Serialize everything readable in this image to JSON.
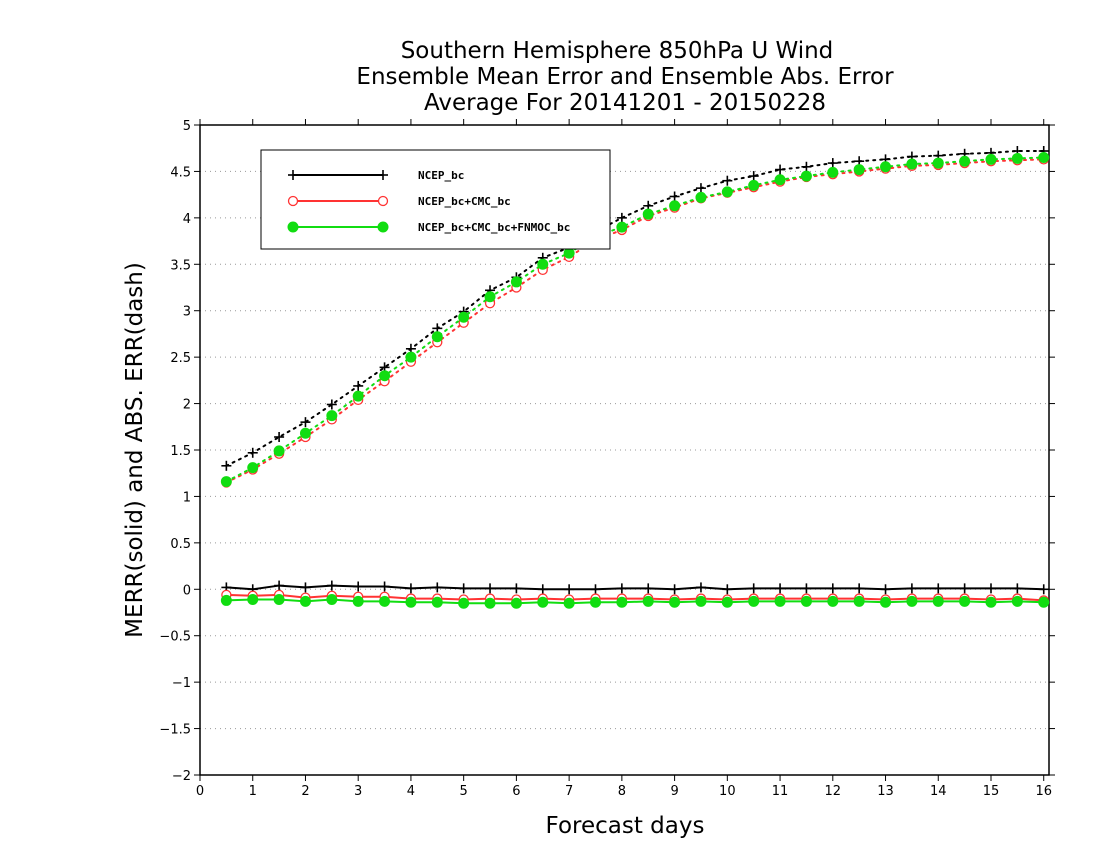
{
  "chart_data": {
    "type": "line",
    "title_lines": [
      "Southern Hemisphere 850hPa U Wind",
      "Ensemble Mean Error and Ensemble Abs. Error",
      "Average For 20141201 - 20150228"
    ],
    "xlabel": "Forecast days",
    "ylabel": "MERR(solid) and ABS. ERR(dash)",
    "xlim": [
      0,
      16.1
    ],
    "ylim": [
      -2,
      5
    ],
    "x_ticks": [
      0,
      1,
      2,
      3,
      4,
      5,
      6,
      7,
      8,
      9,
      10,
      11,
      12,
      13,
      14,
      15,
      16
    ],
    "y_ticks": [
      -2,
      -1.5,
      -1,
      -0.5,
      0,
      0.5,
      1,
      1.5,
      2,
      2.5,
      3,
      3.5,
      4,
      4.5,
      5
    ],
    "y_tick_labels": [
      "−2",
      "−1.5",
      "−1",
      "−0.5",
      "0",
      "0.5",
      "1",
      "1.5",
      "2",
      "2.5",
      "3",
      "3.5",
      "4",
      "4.5",
      "5"
    ],
    "grid": "horizontal dotted",
    "legend_position": "top-left",
    "x": [
      0.5,
      1,
      1.5,
      2,
      2.5,
      3,
      3.5,
      4,
      4.5,
      5,
      5.5,
      6,
      6.5,
      7,
      7.5,
      8,
      8.5,
      9,
      9.5,
      10,
      10.5,
      11,
      11.5,
      12,
      12.5,
      13,
      13.5,
      14,
      14.5,
      15,
      15.5,
      16
    ],
    "series": [
      {
        "name": "NCEP_bc",
        "color": "#000000",
        "marker": "plus",
        "merr": [
          0.02,
          0.0,
          0.04,
          0.02,
          0.04,
          0.03,
          0.03,
          0.01,
          0.02,
          0.01,
          0.01,
          0.01,
          0.0,
          0.0,
          0.0,
          0.01,
          0.01,
          0.0,
          0.02,
          0.0,
          0.01,
          0.01,
          0.01,
          0.01,
          0.01,
          0.0,
          0.01,
          0.01,
          0.01,
          0.01,
          0.01,
          0.0
        ],
        "abs_err": [
          1.33,
          1.47,
          1.64,
          1.8,
          1.99,
          2.19,
          2.39,
          2.59,
          2.81,
          2.99,
          3.22,
          3.36,
          3.57,
          3.68,
          3.85,
          4.0,
          4.13,
          4.23,
          4.32,
          4.4,
          4.45,
          4.52,
          4.55,
          4.59,
          4.61,
          4.63,
          4.66,
          4.67,
          4.69,
          4.7,
          4.72,
          4.72
        ]
      },
      {
        "name": "NCEP_bc+CMC_bc",
        "color": "#ff3333",
        "marker": "open-circle",
        "merr": [
          -0.06,
          -0.07,
          -0.06,
          -0.09,
          -0.07,
          -0.08,
          -0.08,
          -0.1,
          -0.1,
          -0.11,
          -0.1,
          -0.11,
          -0.1,
          -0.11,
          -0.1,
          -0.1,
          -0.1,
          -0.11,
          -0.1,
          -0.11,
          -0.1,
          -0.1,
          -0.1,
          -0.1,
          -0.1,
          -0.11,
          -0.1,
          -0.1,
          -0.1,
          -0.11,
          -0.1,
          -0.12
        ],
        "abs_err": [
          1.15,
          1.29,
          1.46,
          1.64,
          1.83,
          2.04,
          2.24,
          2.45,
          2.66,
          2.87,
          3.08,
          3.25,
          3.44,
          3.58,
          3.76,
          3.87,
          4.02,
          4.11,
          4.21,
          4.27,
          4.33,
          4.39,
          4.44,
          4.47,
          4.5,
          4.53,
          4.56,
          4.57,
          4.59,
          4.61,
          4.62,
          4.63
        ]
      },
      {
        "name": "NCEP_bc+CMC_bc+FNMOC_bc",
        "color": "#11dd11",
        "marker": "filled-circle",
        "merr": [
          -0.12,
          -0.11,
          -0.11,
          -0.13,
          -0.11,
          -0.13,
          -0.13,
          -0.14,
          -0.14,
          -0.15,
          -0.15,
          -0.15,
          -0.14,
          -0.15,
          -0.14,
          -0.14,
          -0.13,
          -0.14,
          -0.13,
          -0.14,
          -0.13,
          -0.13,
          -0.13,
          -0.13,
          -0.13,
          -0.14,
          -0.13,
          -0.13,
          -0.13,
          -0.14,
          -0.13,
          -0.14
        ],
        "abs_err": [
          1.16,
          1.31,
          1.49,
          1.68,
          1.87,
          2.08,
          2.3,
          2.5,
          2.72,
          2.93,
          3.15,
          3.31,
          3.5,
          3.62,
          3.8,
          3.9,
          4.04,
          4.13,
          4.22,
          4.28,
          4.35,
          4.41,
          4.45,
          4.49,
          4.52,
          4.55,
          4.58,
          4.59,
          4.61,
          4.63,
          4.64,
          4.65
        ]
      }
    ]
  }
}
